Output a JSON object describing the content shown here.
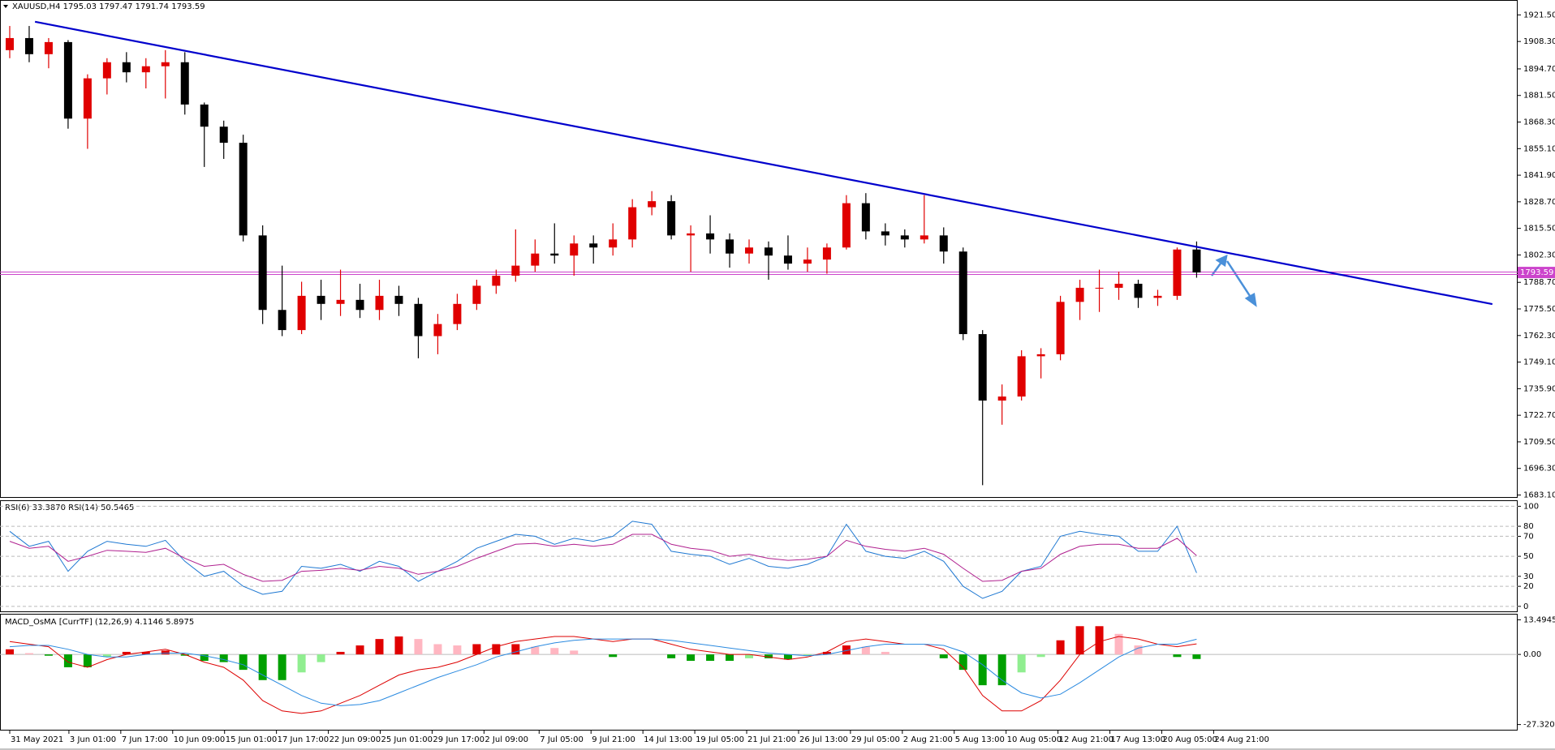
{
  "chart_data": [
    {
      "type": "candlestick",
      "title": "XAUUSD,H4  1795.03 1797.47 1791.74 1793.59",
      "x": [
        0,
        1,
        2,
        3,
        4,
        5,
        6,
        7,
        8,
        9,
        10,
        11,
        12,
        13,
        14,
        15,
        16,
        17,
        18,
        19,
        20,
        21,
        22,
        23,
        24,
        25,
        26,
        27,
        28,
        29,
        30,
        31,
        32,
        33,
        34,
        35,
        36,
        37,
        38,
        39,
        40,
        41,
        42,
        43,
        44,
        45,
        46,
        47,
        48,
        49,
        50,
        51,
        52,
        53,
        54,
        55,
        56,
        57,
        58,
        59,
        60,
        61
      ],
      "open": [
        1904,
        1910,
        1902,
        1908,
        1870,
        1890,
        1898,
        1893,
        1896,
        1898,
        1877,
        1866,
        1858,
        1812,
        1775,
        1765,
        1782,
        1778,
        1780,
        1775,
        1782,
        1778,
        1762,
        1768,
        1778,
        1787,
        1792,
        1797,
        1803,
        1802,
        1808,
        1806,
        1810,
        1826,
        1829,
        1812,
        1813,
        1810,
        1803,
        1806,
        1802,
        1798,
        1800,
        1806,
        1828,
        1814,
        1812,
        1810,
        1812,
        1804,
        1763,
        1730,
        1732,
        1752,
        1753,
        1779,
        1786,
        1786,
        1788,
        1781,
        1782,
        1805
      ],
      "high": [
        1916,
        1916,
        1910,
        1909,
        1892,
        1900,
        1903,
        1900,
        1904,
        1903,
        1878,
        1869,
        1862,
        1817,
        1797,
        1789,
        1790,
        1795,
        1788,
        1790,
        1787,
        1781,
        1773,
        1783,
        1790,
        1795,
        1815,
        1810,
        1818,
        1812,
        1812,
        1818,
        1830,
        1834,
        1832,
        1817,
        1822,
        1813,
        1810,
        1809,
        1812,
        1806,
        1808,
        1832,
        1833,
        1818,
        1815,
        1832,
        1816,
        1806,
        1765,
        1738,
        1755,
        1756,
        1782,
        1790,
        1795,
        1794,
        1790,
        1785,
        1806,
        1809
      ],
      "low": [
        1900,
        1898,
        1895,
        1865,
        1855,
        1882,
        1888,
        1885,
        1880,
        1872,
        1846,
        1850,
        1809,
        1768,
        1762,
        1763,
        1770,
        1772,
        1771,
        1770,
        1772,
        1751,
        1753,
        1765,
        1775,
        1783,
        1789,
        1794,
        1798,
        1792,
        1798,
        1802,
        1806,
        1822,
        1810,
        1794,
        1803,
        1796,
        1798,
        1790,
        1795,
        1794,
        1793,
        1805,
        1810,
        1807,
        1806,
        1808,
        1798,
        1760,
        1688,
        1718,
        1730,
        1741,
        1750,
        1770,
        1774,
        1780,
        1776,
        1777,
        1780,
        1791
      ],
      "close": [
        1910,
        1902,
        1908,
        1870,
        1890,
        1898,
        1893,
        1896,
        1898,
        1877,
        1866,
        1858,
        1812,
        1775,
        1765,
        1782,
        1778,
        1780,
        1775,
        1782,
        1778,
        1762,
        1768,
        1778,
        1787,
        1792,
        1797,
        1803,
        1802,
        1808,
        1806,
        1810,
        1826,
        1829,
        1812,
        1813,
        1810,
        1803,
        1806,
        1802,
        1798,
        1800,
        1806,
        1828,
        1814,
        1812,
        1810,
        1812,
        1804,
        1763,
        1730,
        1732,
        1752,
        1753,
        1779,
        1786,
        1786,
        1788,
        1781,
        1782,
        1805,
        1793.59
      ],
      "up_color": "#e00000",
      "down_color": "#000000",
      "xlim": [
        -0.5,
        77.5
      ],
      "ylim": [
        1682.1,
        1928.9
      ],
      "yticks": [
        {
          "value": 1921.5,
          "label": "1921.50"
        },
        {
          "value": 1908.3,
          "label": "1908.30"
        },
        {
          "value": 1894.7,
          "label": "1894.70"
        },
        {
          "value": 1881.5,
          "label": "1881.50"
        },
        {
          "value": 1868.3,
          "label": "1868.30"
        },
        {
          "value": 1855.1,
          "label": "1855.10"
        },
        {
          "value": 1841.9,
          "label": "1841.90"
        },
        {
          "value": 1828.7,
          "label": "1828.70"
        },
        {
          "value": 1815.5,
          "label": "1815.50"
        },
        {
          "value": 1802.3,
          "label": "1802.30"
        },
        {
          "value": 1788.7,
          "label": "1788.70"
        },
        {
          "value": 1775.5,
          "label": "1775.50"
        },
        {
          "value": 1762.3,
          "label": "1762.30"
        },
        {
          "value": 1749.1,
          "label": "1749.10"
        },
        {
          "value": 1735.9,
          "label": "1735.90"
        },
        {
          "value": 1722.7,
          "label": "1722.70"
        },
        {
          "value": 1709.5,
          "label": "1709.50"
        },
        {
          "value": 1696.3,
          "label": "1696.30"
        },
        {
          "value": 1683.1,
          "label": "1683.10"
        }
      ],
      "xticks": [
        {
          "value": 0,
          "label": "31 May 2021"
        },
        {
          "value": 3.042,
          "label": "3 Jun 01:00"
        },
        {
          "value": 5.708,
          "label": "7 Jun 17:00"
        },
        {
          "value": 8.375,
          "label": "10 Jun 09:00"
        },
        {
          "value": 11.042,
          "label": "15 Jun 01:00"
        },
        {
          "value": 13.708,
          "label": "17 Jun 17:00"
        },
        {
          "value": 16.375,
          "label": "22 Jun 09:00"
        },
        {
          "value": 19.042,
          "label": "25 Jun 01:00"
        },
        {
          "value": 21.708,
          "label": "29 Jun 17:00"
        },
        {
          "value": 24.375,
          "label": "2 Jul 09:00"
        },
        {
          "value": 27.208,
          "label": "7 Jul 05:00"
        },
        {
          "value": 29.875,
          "label": "9 Jul 21:00"
        },
        {
          "value": 32.542,
          "label": "14 Jul 13:00"
        },
        {
          "value": 35.208,
          "label": "19 Jul 05:00"
        },
        {
          "value": 37.875,
          "label": "21 Jul 21:00"
        },
        {
          "value": 40.542,
          "label": "26 Jul 13:00"
        },
        {
          "value": 43.208,
          "label": "29 Jul 05:00"
        },
        {
          "value": 45.875,
          "label": "2 Aug 21:00"
        },
        {
          "value": 48.542,
          "label": "5 Aug 13:00"
        },
        {
          "value": 51.208,
          "label": "10 Aug 05:00"
        },
        {
          "value": 53.875,
          "label": "12 Aug 21:00"
        },
        {
          "value": 56.542,
          "label": "17 Aug 13:00"
        },
        {
          "value": 59.208,
          "label": "20 Aug 05:00"
        },
        {
          "value": 61.875,
          "label": "24 Aug 21:00"
        }
      ],
      "trendline": {
        "x": [
          1.3,
          76.2
        ],
        "y": [
          1918.1,
          1777.9
        ],
        "color": "#0000cc"
      },
      "hline": {
        "value": 1793.2,
        "color": "#cc44cc"
      },
      "current_price": 1793.59
    },
    {
      "type": "line",
      "title": "RSI(6) 33.3870  RSI(14) 50.5465",
      "x": [
        0,
        1,
        2,
        3,
        4,
        5,
        6,
        7,
        8,
        9,
        10,
        11,
        12,
        13,
        14,
        15,
        16,
        17,
        18,
        19,
        20,
        21,
        22,
        23,
        24,
        25,
        26,
        27,
        28,
        29,
        30,
        31,
        32,
        33,
        34,
        35,
        36,
        37,
        38,
        39,
        40,
        41,
        42,
        43,
        44,
        45,
        46,
        47,
        48,
        49,
        50,
        51,
        52,
        53,
        54,
        55,
        56,
        57,
        58,
        59,
        60,
        61
      ],
      "series": [
        {
          "color": "#1e78d2",
          "values": [
            75,
            60,
            65,
            35,
            55,
            65,
            62,
            60,
            66,
            45,
            30,
            35,
            20,
            12,
            15,
            40,
            38,
            42,
            35,
            45,
            40,
            25,
            35,
            45,
            58,
            65,
            72,
            70,
            62,
            68,
            65,
            70,
            85,
            82,
            55,
            52,
            50,
            42,
            48,
            40,
            38,
            42,
            50,
            82,
            55,
            50,
            48,
            55,
            45,
            20,
            8,
            15,
            35,
            40,
            70,
            75,
            72,
            70,
            55,
            55,
            80,
            33.387
          ]
        },
        {
          "color": "#b0208f",
          "values": [
            65,
            58,
            60,
            45,
            50,
            56,
            55,
            54,
            58,
            48,
            40,
            42,
            32,
            25,
            26,
            35,
            36,
            38,
            36,
            40,
            38,
            32,
            35,
            40,
            48,
            55,
            62,
            63,
            60,
            62,
            60,
            62,
            72,
            72,
            62,
            58,
            56,
            50,
            52,
            48,
            46,
            47,
            50,
            66,
            60,
            57,
            55,
            58,
            52,
            38,
            25,
            26,
            35,
            38,
            52,
            60,
            62,
            62,
            58,
            58,
            68,
            50.5465
          ]
        }
      ],
      "ylim": [
        -5,
        106
      ],
      "yticks": [
        100,
        80,
        70,
        50,
        30,
        20,
        0
      ],
      "grid": true
    },
    {
      "type": "macd",
      "title": "MACD_OsMA [CurrTF] (12,26,9) 4.1146 5.8975",
      "x": [
        0,
        1,
        2,
        3,
        4,
        5,
        6,
        7,
        8,
        9,
        10,
        11,
        12,
        13,
        14,
        15,
        16,
        17,
        18,
        19,
        20,
        21,
        22,
        23,
        24,
        25,
        26,
        27,
        28,
        29,
        30,
        31,
        32,
        33,
        34,
        35,
        36,
        37,
        38,
        39,
        40,
        41,
        42,
        43,
        44,
        45,
        46,
        47,
        48,
        49,
        50,
        51,
        52,
        53,
        54,
        55,
        56,
        57,
        58,
        59,
        60,
        61
      ],
      "histogram": [
        2,
        0.5,
        -0.5,
        -5,
        -5,
        -1,
        1,
        1,
        1.5,
        -0.5,
        -2.5,
        -3,
        -6,
        -10,
        -10,
        -7,
        -3,
        1,
        3.5,
        6,
        7,
        6,
        4,
        3.5,
        4,
        4,
        4,
        3,
        2.5,
        1.5,
        0,
        -1,
        0,
        0,
        -1.5,
        -2.5,
        -2.5,
        -2.5,
        -1.5,
        -1.5,
        -2,
        -0.5,
        1,
        3.5,
        3,
        1,
        0,
        0,
        -1.5,
        -6,
        -12,
        -12,
        -7,
        -1,
        5.5,
        11,
        11,
        8,
        3.5,
        0,
        -1,
        -1.78
      ],
      "histogram_colors": [
        "#e00000",
        "#ffb6c1",
        "#00a000",
        "#90ee90"
      ],
      "series": [
        {
          "color": "#dd0000",
          "values": [
            5,
            4,
            3,
            -3,
            -5,
            -2,
            0,
            1,
            2,
            0,
            -3,
            -5,
            -10,
            -18,
            -22,
            -23,
            -22,
            -19,
            -16,
            -12,
            -8,
            -6,
            -5,
            -3,
            0,
            3,
            5,
            6,
            7,
            7,
            6,
            5,
            6,
            6,
            4,
            2,
            1,
            0,
            0,
            -1,
            -2,
            -1,
            1,
            5,
            6,
            5,
            4,
            4,
            2,
            -5,
            -16,
            -22,
            -22,
            -18,
            -10,
            0,
            5,
            7,
            6,
            4,
            3,
            4.1146
          ]
        },
        {
          "color": "#2a8ae0",
          "values": [
            3,
            3.5,
            3.5,
            2,
            0,
            -1,
            -1,
            0,
            0.5,
            0.5,
            -0.5,
            -2,
            -4,
            -8,
            -12,
            -16,
            -19,
            -20,
            -19.5,
            -18,
            -15,
            -12,
            -9,
            -6.5,
            -4,
            -1,
            1,
            3,
            4.5,
            5.5,
            6,
            6,
            6,
            6,
            5.5,
            4.5,
            3.5,
            2.5,
            1.5,
            0.5,
            0,
            -0.5,
            0,
            1.5,
            3,
            4,
            4,
            4,
            3.5,
            1,
            -4,
            -10,
            -15,
            -17,
            -15.5,
            -11,
            -6,
            -1,
            2.5,
            4,
            4,
            5.8975
          ]
        }
      ],
      "ylim": [
        -29.65,
        15.83
      ],
      "yticks": [
        13.4945,
        {
          "value": 0,
          "label": "0.00"
        },
        -27.3205
      ],
      "zero_line": true
    }
  ]
}
